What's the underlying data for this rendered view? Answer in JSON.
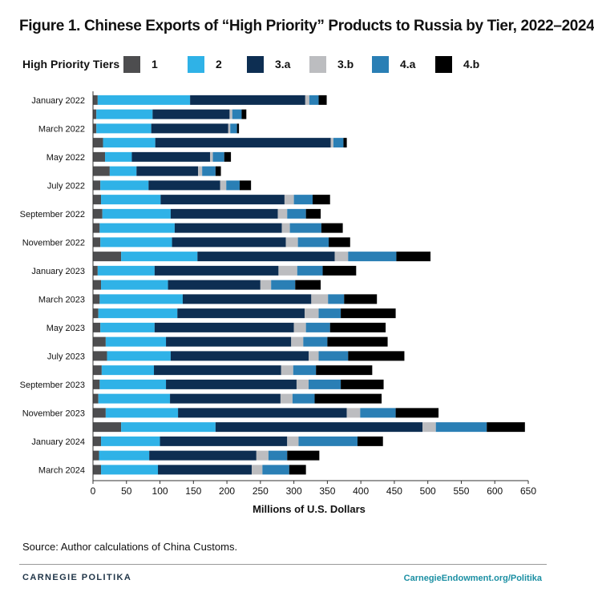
{
  "title": "Figure 1. Chinese Exports of “High Priority” Products to Russia by Tier, 2022–2024",
  "legend": {
    "title": "High Priority Tiers",
    "items": [
      {
        "label": "1",
        "color": "#4d4d4f"
      },
      {
        "label": "2",
        "color": "#2fb2e7"
      },
      {
        "label": "3.a",
        "color": "#0d2e52"
      },
      {
        "label": "3.b",
        "color": "#bcbdc0"
      },
      {
        "label": "4.a",
        "color": "#2a7fb5"
      },
      {
        "label": "4.b",
        "color": "#000000"
      }
    ]
  },
  "source": "Source: Author calculations of China Customs.",
  "footer": {
    "brand": "CARNEGIE POLITIKA",
    "url": "CarnegieEndowment.org/Politika"
  },
  "chart_data": {
    "type": "bar",
    "orientation": "horizontal",
    "stacked": true,
    "title": "Figure 1. Chinese Exports of “High Priority” Products to Russia by Tier, 2022–2024",
    "xlabel": "Millions of U.S. Dollars",
    "xlim": [
      0,
      650
    ],
    "xticks": [
      0,
      50,
      100,
      150,
      200,
      250,
      300,
      350,
      400,
      450,
      500,
      550,
      600,
      650
    ],
    "gridlines": false,
    "legend_position": "top",
    "categories": [
      "Jan 2022",
      "Feb 2022",
      "Mar 2022",
      "Apr 2022",
      "May 2022",
      "Jun 2022",
      "Jul 2022",
      "Aug 2022",
      "Sep 2022",
      "Oct 2022",
      "Nov 2022",
      "Dec 2022",
      "Jan 2023",
      "Feb 2023",
      "Mar 2023",
      "Apr 2023",
      "May 2023",
      "Jun 2023",
      "Jul 2023",
      "Aug 2023",
      "Sep 2023",
      "Oct 2023",
      "Nov 2023",
      "Dec 2023",
      "Jan 2024",
      "Feb 2024",
      "Mar 2024"
    ],
    "tick_labels": [
      "January 2022",
      "",
      "March 2022",
      "",
      "May 2022",
      "",
      "July 2022",
      "",
      "September 2022",
      "",
      "November 2022",
      "",
      "January 2023",
      "",
      "March 2023",
      "",
      "May 2023",
      "",
      "July 2023",
      "",
      "September 2023",
      "",
      "November 2023",
      "",
      "January 2024",
      "",
      "March 2024"
    ],
    "series": [
      {
        "name": "1",
        "color": "#4d4d4f",
        "values": [
          7,
          5,
          5,
          15,
          18,
          25,
          11,
          12,
          14,
          10,
          11,
          42,
          7,
          12,
          10,
          8,
          11,
          19,
          21,
          13,
          10,
          8,
          19,
          42,
          12,
          9,
          12
        ]
      },
      {
        "name": "2",
        "color": "#2fb2e7",
        "values": [
          138,
          84,
          82,
          78,
          40,
          40,
          72,
          89,
          102,
          112,
          107,
          114,
          85,
          100,
          124,
          118,
          81,
          90,
          95,
          78,
          99,
          107,
          108,
          141,
          88,
          75,
          85
        ]
      },
      {
        "name": "3.a",
        "color": "#0d2e52",
        "values": [
          172,
          115,
          115,
          262,
          117,
          92,
          107,
          185,
          160,
          160,
          170,
          205,
          185,
          138,
          192,
          190,
          208,
          187,
          206,
          190,
          195,
          165,
          252,
          309,
          190,
          160,
          140
        ]
      },
      {
        "name": "3.b",
        "color": "#bcbdc0",
        "values": [
          6,
          4,
          3,
          4,
          4,
          6,
          9,
          14,
          14,
          12,
          18,
          20,
          28,
          16,
          25,
          21,
          18,
          18,
          15,
          18,
          18,
          18,
          20,
          20,
          17,
          18,
          16
        ]
      },
      {
        "name": "4.a",
        "color": "#2a7fb5",
        "values": [
          14,
          14,
          10,
          15,
          17,
          20,
          20,
          28,
          28,
          47,
          46,
          72,
          38,
          36,
          24,
          33,
          36,
          36,
          44,
          34,
          48,
          33,
          53,
          76,
          88,
          28,
          40
        ]
      },
      {
        "name": "4.b",
        "color": "#000000",
        "values": [
          12,
          7,
          3,
          5,
          10,
          8,
          17,
          26,
          22,
          32,
          32,
          51,
          50,
          38,
          49,
          82,
          83,
          90,
          84,
          84,
          64,
          100,
          64,
          57,
          38,
          48,
          25
        ]
      }
    ]
  }
}
